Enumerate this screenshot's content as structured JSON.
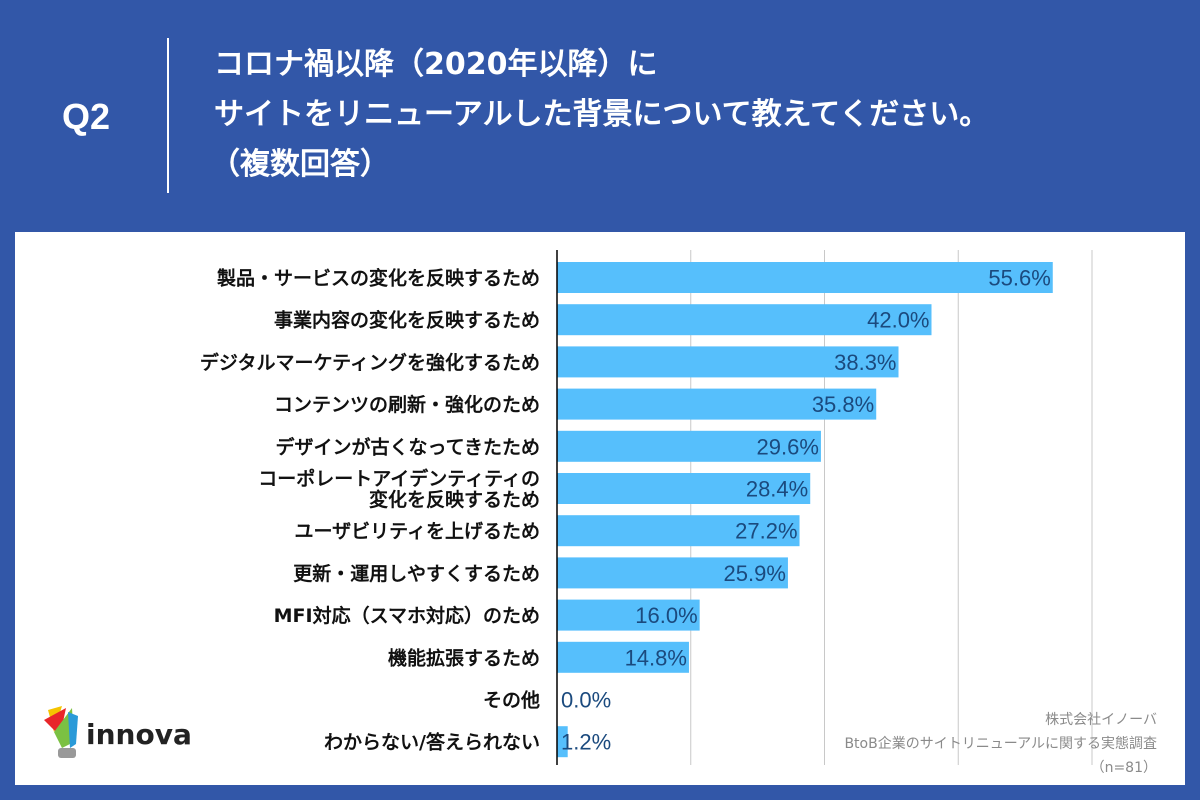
{
  "header": {
    "question_number": "Q2",
    "title_lines": [
      "コロナ禍以降（2020年以降）に",
      "サイトをリニューアルした背景について教えてください。",
      "（複数回答）"
    ]
  },
  "chart_data": {
    "type": "bar",
    "orientation": "horizontal",
    "categories": [
      "製品・サービスの変化を反映するため",
      "事業内容の変化を反映するため",
      "デジタルマーケティングを強化するため",
      "コンテンツの刷新・強化のため",
      "デザインが古くなってきたため",
      "コーポレートアイデンティティの\n変化を反映するため",
      "ユーザビリティを上げるため",
      "更新・運用しやすくするため",
      "MFI対応（スマホ対応）のため",
      "機能拡張するため",
      "その他",
      "わからない/答えられない"
    ],
    "values": [
      55.6,
      42.0,
      38.3,
      35.8,
      29.6,
      28.4,
      27.2,
      25.9,
      16.0,
      14.8,
      0.0,
      1.2
    ],
    "value_labels": [
      "55.6%",
      "42.0%",
      "38.3%",
      "35.8%",
      "29.6%",
      "28.4%",
      "27.2%",
      "25.9%",
      "16.0%",
      "14.8%",
      "0.0%",
      "1.2%"
    ],
    "xlim": [
      0,
      60
    ],
    "grid": true,
    "grid_step": 15,
    "bar_color": "#56bffc",
    "label_color": "#1b4a7e"
  },
  "logo": {
    "text": "innova"
  },
  "source": {
    "company": "株式会社イノーバ",
    "survey": "BtoB企業のサイトリニューアルに関する実態調査",
    "sample": "（n=81）"
  },
  "colors": {
    "background": "#3257a8",
    "panel": "#ffffff"
  }
}
